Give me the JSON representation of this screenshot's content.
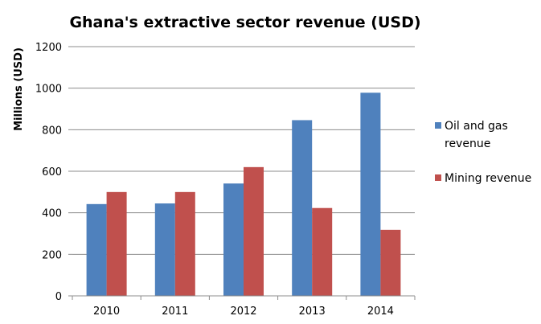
{
  "chart_data": {
    "type": "bar",
    "title": "Ghana's extractive sector revenue (USD)",
    "xlabel": "",
    "ylabel": "Millions (USD)",
    "ylim": [
      0,
      1200
    ],
    "yticks": [
      0,
      200,
      400,
      600,
      800,
      1000,
      1200
    ],
    "grid": true,
    "legend_position": "right",
    "categories": [
      "2010",
      "2011",
      "2012",
      "2013",
      "2014"
    ],
    "series": [
      {
        "name": "Oil and gas revenue",
        "legend_lines": [
          "Oil and gas",
          "revenue"
        ],
        "color": "#4f81bd",
        "values": [
          442,
          445,
          541,
          846,
          978
        ]
      },
      {
        "name": "Mining revenue",
        "legend_lines": [
          "Mining revenue"
        ],
        "color": "#c0504d",
        "values": [
          500,
          500,
          620,
          423,
          318
        ]
      }
    ]
  }
}
